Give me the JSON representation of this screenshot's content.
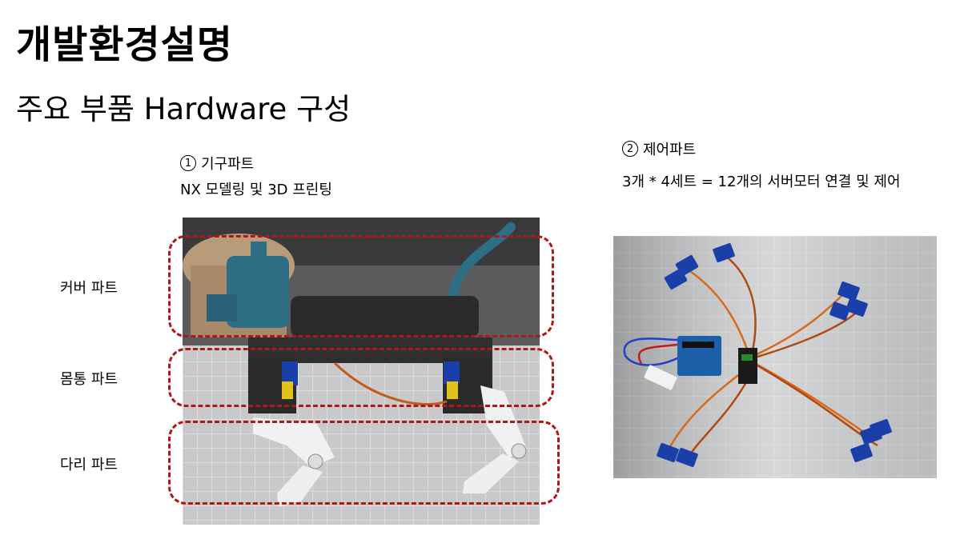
{
  "title": "개발환경설명",
  "subtitle": "주요 부품 Hardware 구성",
  "section1": {
    "number": "1",
    "heading": "기구파트",
    "description": "NX 모델링 및 3D 프린팅",
    "parts": [
      "커버 파트",
      "몸통 파트",
      "다리 파트"
    ]
  },
  "section2": {
    "number": "2",
    "heading": "제어파트",
    "description": "3개 * 4세트 = 12개의 서버모터 연결 및 제어"
  },
  "colors": {
    "highlight_dash": "#b01818",
    "robot_body": "#2b2b2b",
    "robot_head": "#2f6f86",
    "servo": "#1b3fa8"
  }
}
